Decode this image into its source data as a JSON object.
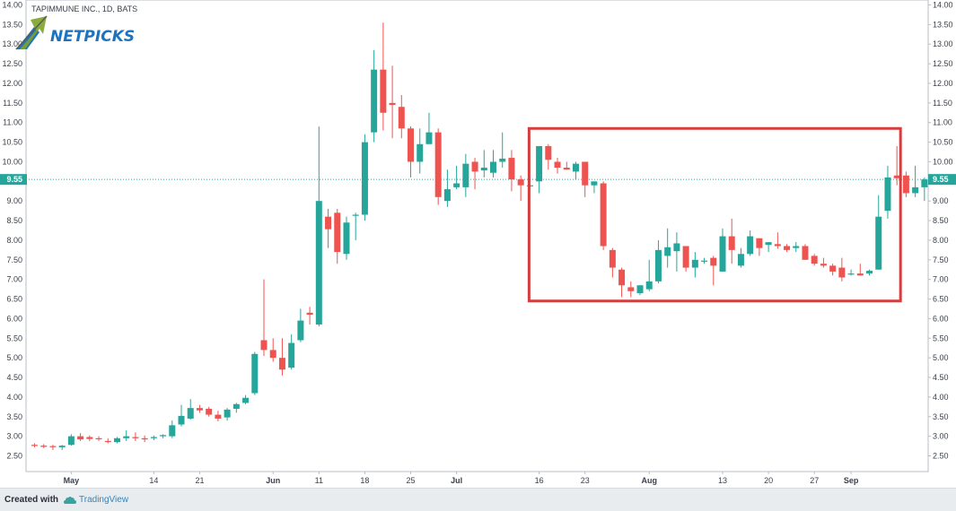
{
  "header": {
    "symbol_title": "TAPIMMUNE INC., 1D, BATS",
    "logo_text": "NETPICKS"
  },
  "price_marker": {
    "value": "9.55"
  },
  "footer": {
    "created_with": "Created with",
    "brand": "TradingView"
  },
  "colors": {
    "up": "#26a69a",
    "down": "#ef5350",
    "highlight_box": "#d43e3e",
    "price_line": "#26a69a",
    "logo_blue": "#1e73be",
    "logo_green": "#7da32a"
  },
  "chart_data": {
    "type": "candlestick",
    "title": "TAPIMMUNE INC., 1D, BATS",
    "ylim": [
      2.2,
      14.1
    ],
    "yticks": [
      "2.50",
      "3.00",
      "3.50",
      "4.00",
      "4.50",
      "5.00",
      "5.50",
      "6.00",
      "6.50",
      "7.00",
      "7.50",
      "8.00",
      "8.50",
      "9.00",
      "9.50",
      "10.00",
      "10.50",
      "11.00",
      "11.50",
      "12.00",
      "12.50",
      "13.00",
      "13.50",
      "14.00"
    ],
    "xticks": [
      {
        "label": "May",
        "index": 4
      },
      {
        "label": "14",
        "index": 13
      },
      {
        "label": "21",
        "index": 18
      },
      {
        "label": "Jun",
        "index": 26
      },
      {
        "label": "11",
        "index": 31
      },
      {
        "label": "18",
        "index": 36
      },
      {
        "label": "25",
        "index": 41
      },
      {
        "label": "Jul",
        "index": 46
      },
      {
        "label": "16",
        "index": 55
      },
      {
        "label": "23",
        "index": 60
      },
      {
        "label": "Aug",
        "index": 67
      },
      {
        "label": "13",
        "index": 75
      },
      {
        "label": "20",
        "index": 80
      },
      {
        "label": "27",
        "index": 85
      },
      {
        "label": "Sep",
        "index": 89
      }
    ],
    "highlight": {
      "from_index": 54,
      "to_index": 94,
      "y_low": 6.45,
      "y_high": 10.85
    },
    "last_price": 9.55,
    "ohlc": [
      [
        2.78,
        2.82,
        2.72,
        2.76
      ],
      [
        2.76,
        2.8,
        2.7,
        2.73
      ],
      [
        2.75,
        2.78,
        2.65,
        2.73
      ],
      [
        2.72,
        2.78,
        2.65,
        2.76
      ],
      [
        2.78,
        3.05,
        2.76,
        3.0
      ],
      [
        3.0,
        3.08,
        2.88,
        2.92
      ],
      [
        2.98,
        3.02,
        2.88,
        2.93
      ],
      [
        2.95,
        3.0,
        2.88,
        2.93
      ],
      [
        2.88,
        2.95,
        2.82,
        2.87
      ],
      [
        2.85,
        2.98,
        2.82,
        2.95
      ],
      [
        2.95,
        3.15,
        2.88,
        3.0
      ],
      [
        2.98,
        3.1,
        2.88,
        2.95
      ],
      [
        2.95,
        3.02,
        2.85,
        2.92
      ],
      [
        2.95,
        3.02,
        2.9,
        2.98
      ],
      [
        3.0,
        3.05,
        2.95,
        3.03
      ],
      [
        3.0,
        3.4,
        2.95,
        3.28
      ],
      [
        3.3,
        3.8,
        3.25,
        3.52
      ],
      [
        3.45,
        3.95,
        3.42,
        3.72
      ],
      [
        3.72,
        3.8,
        3.6,
        3.66
      ],
      [
        3.7,
        3.75,
        3.5,
        3.55
      ],
      [
        3.55,
        3.65,
        3.38,
        3.45
      ],
      [
        3.48,
        3.72,
        3.4,
        3.68
      ],
      [
        3.7,
        3.85,
        3.6,
        3.82
      ],
      [
        3.85,
        4.05,
        3.82,
        3.98
      ],
      [
        4.1,
        5.15,
        4.05,
        5.1
      ],
      [
        5.45,
        7.0,
        5.05,
        5.2
      ],
      [
        5.2,
        5.5,
        4.9,
        5.0
      ],
      [
        5.0,
        5.5,
        4.55,
        4.7
      ],
      [
        4.75,
        5.6,
        4.7,
        5.38
      ],
      [
        5.45,
        6.25,
        5.4,
        5.95
      ],
      [
        6.15,
        6.3,
        5.85,
        6.1
      ],
      [
        5.85,
        10.9,
        5.8,
        9.0
      ],
      [
        8.6,
        8.8,
        7.8,
        8.28
      ],
      [
        8.7,
        8.8,
        7.4,
        7.7
      ],
      [
        7.65,
        8.6,
        7.5,
        8.45
      ],
      [
        8.65,
        8.7,
        8.0,
        8.65
      ],
      [
        8.65,
        10.7,
        8.5,
        10.5
      ],
      [
        10.75,
        12.85,
        10.5,
        12.35
      ],
      [
        12.35,
        13.55,
        10.8,
        11.25
      ],
      [
        11.5,
        12.45,
        10.6,
        11.45
      ],
      [
        11.4,
        11.7,
        10.6,
        10.85
      ],
      [
        10.85,
        10.9,
        9.6,
        10.0
      ],
      [
        10.0,
        10.85,
        9.7,
        10.45
      ],
      [
        10.45,
        11.25,
        10.5,
        10.75
      ],
      [
        10.75,
        10.85,
        8.9,
        9.1
      ],
      [
        9.0,
        9.8,
        8.85,
        9.3
      ],
      [
        9.35,
        9.9,
        9.3,
        9.45
      ],
      [
        9.35,
        10.2,
        9.1,
        9.95
      ],
      [
        10.0,
        10.1,
        9.3,
        9.75
      ],
      [
        9.78,
        10.3,
        9.6,
        9.85
      ],
      [
        9.72,
        10.3,
        9.6,
        10.0
      ],
      [
        10.0,
        10.75,
        9.85,
        10.08
      ],
      [
        10.1,
        10.3,
        9.25,
        9.55
      ],
      [
        9.55,
        9.65,
        9.0,
        9.4
      ],
      [
        9.38,
        9.55,
        9.3,
        9.4
      ],
      [
        9.5,
        10.4,
        9.2,
        10.4
      ],
      [
        10.4,
        10.45,
        9.8,
        10.05
      ],
      [
        10.0,
        10.1,
        9.7,
        9.85
      ],
      [
        9.85,
        10.0,
        9.8,
        9.8
      ],
      [
        9.75,
        10.0,
        9.55,
        9.95
      ],
      [
        10.0,
        10.0,
        9.1,
        9.4
      ],
      [
        9.4,
        9.5,
        9.2,
        9.5
      ],
      [
        9.45,
        9.5,
        7.75,
        7.85
      ],
      [
        7.75,
        7.8,
        7.05,
        7.3
      ],
      [
        7.25,
        7.3,
        6.55,
        6.85
      ],
      [
        6.8,
        6.95,
        6.55,
        6.7
      ],
      [
        6.65,
        6.85,
        6.6,
        6.85
      ],
      [
        6.75,
        7.5,
        6.7,
        6.95
      ],
      [
        6.95,
        8.0,
        6.9,
        7.75
      ],
      [
        7.6,
        8.3,
        7.3,
        7.82
      ],
      [
        7.72,
        8.2,
        7.2,
        7.92
      ],
      [
        7.85,
        7.85,
        7.2,
        7.3
      ],
      [
        7.3,
        7.7,
        7.05,
        7.5
      ],
      [
        7.48,
        7.55,
        7.4,
        7.48
      ],
      [
        7.55,
        7.6,
        6.85,
        7.35
      ],
      [
        7.2,
        8.3,
        7.2,
        8.1
      ],
      [
        8.1,
        8.55,
        7.4,
        7.75
      ],
      [
        7.35,
        7.8,
        7.3,
        7.65
      ],
      [
        7.65,
        8.25,
        7.6,
        8.1
      ],
      [
        8.05,
        8.05,
        7.6,
        7.8
      ],
      [
        7.88,
        7.95,
        7.7,
        7.95
      ],
      [
        7.9,
        8.2,
        7.78,
        7.85
      ],
      [
        7.85,
        7.9,
        7.7,
        7.75
      ],
      [
        7.8,
        7.95,
        7.7,
        7.85
      ],
      [
        7.85,
        7.9,
        7.5,
        7.5
      ],
      [
        7.6,
        7.65,
        7.35,
        7.4
      ],
      [
        7.4,
        7.55,
        7.3,
        7.35
      ],
      [
        7.35,
        7.4,
        7.1,
        7.2
      ],
      [
        7.3,
        7.55,
        6.95,
        7.05
      ],
      [
        7.15,
        7.25,
        7.1,
        7.15
      ],
      [
        7.15,
        7.4,
        7.1,
        7.1
      ],
      [
        7.15,
        7.25,
        7.1,
        7.22
      ],
      [
        7.25,
        9.15,
        7.25,
        8.6
      ],
      [
        8.75,
        9.9,
        8.55,
        9.6
      ],
      [
        9.65,
        10.4,
        9.4,
        9.58
      ],
      [
        9.65,
        9.75,
        9.1,
        9.2
      ],
      [
        9.2,
        9.9,
        9.1,
        9.35
      ],
      [
        9.35,
        9.6,
        9.0,
        9.55
      ]
    ]
  }
}
